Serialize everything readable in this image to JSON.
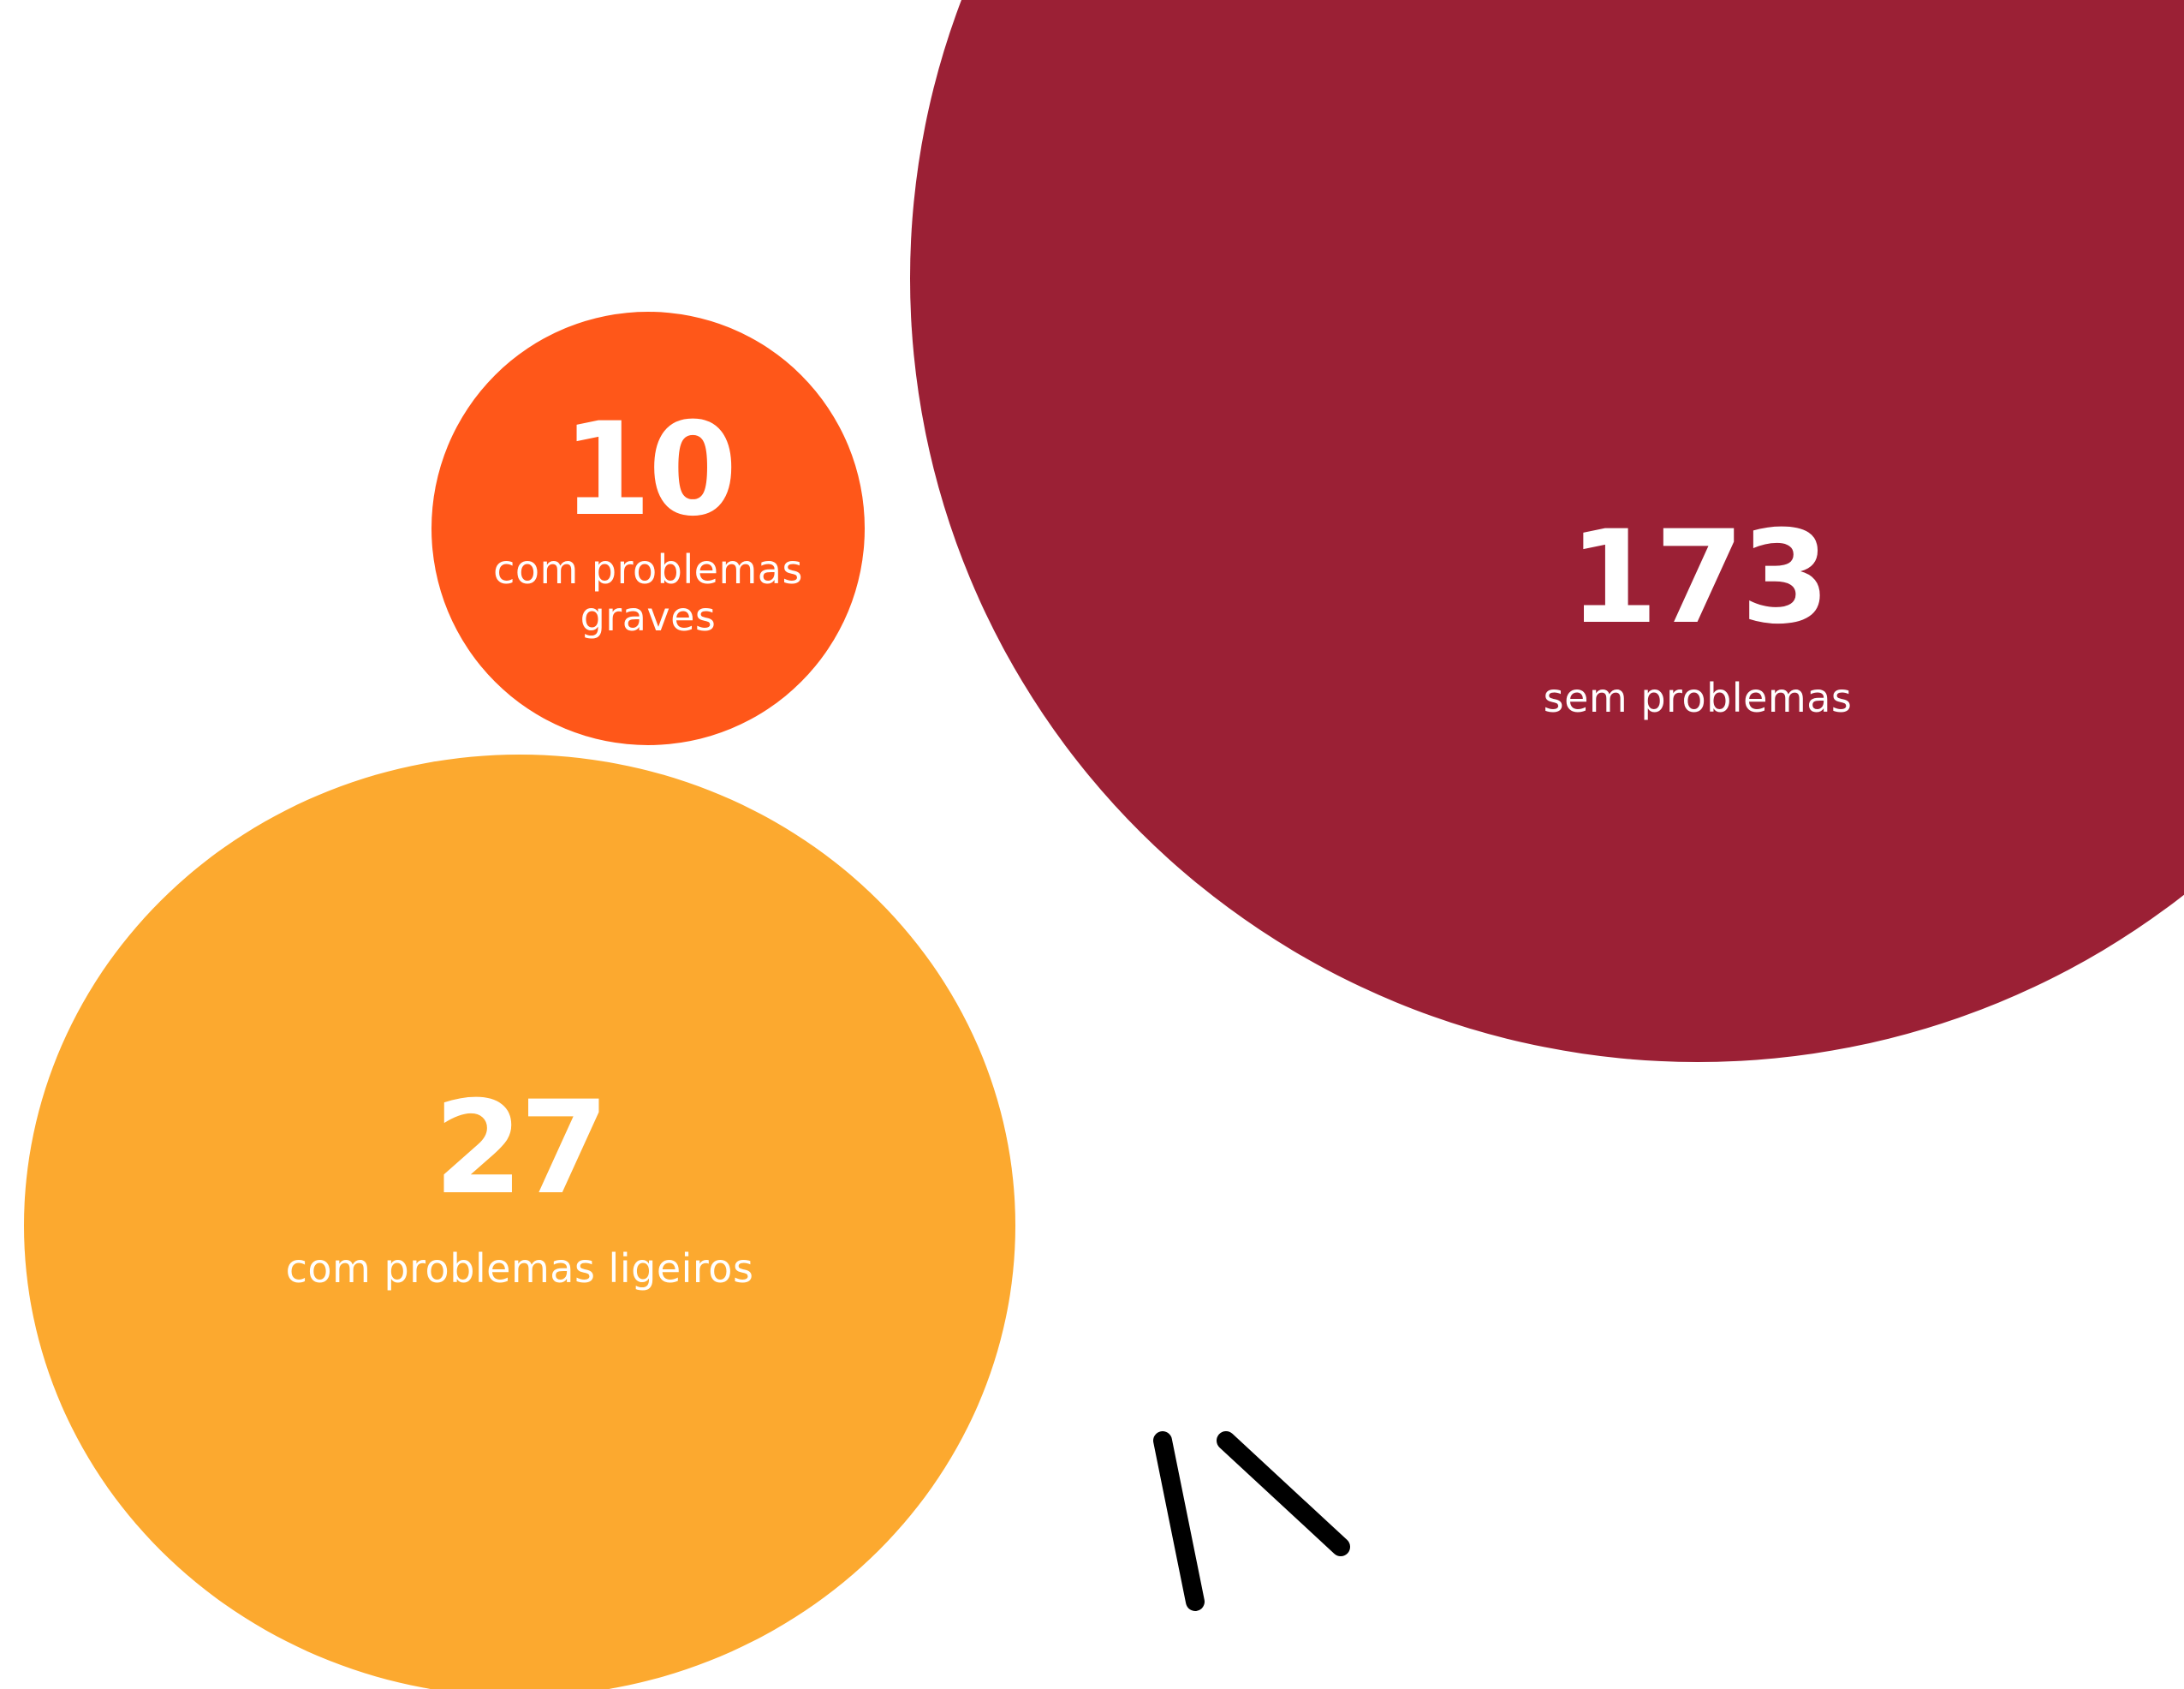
{
  "chart_data": {
    "type": "bubble",
    "title": "",
    "series": [
      {
        "value": 173,
        "label": "sem problemas",
        "color": "#9B2035"
      },
      {
        "value": 10,
        "label": "com problemas graves",
        "color": "#FF5719"
      },
      {
        "value": 27,
        "label": "com problemas ligeiros",
        "color": "#FCA92F"
      }
    ]
  },
  "decoration": {
    "stroke_color": "#000000",
    "icon": "hand-drawn-emphasis-strokes-icon"
  }
}
